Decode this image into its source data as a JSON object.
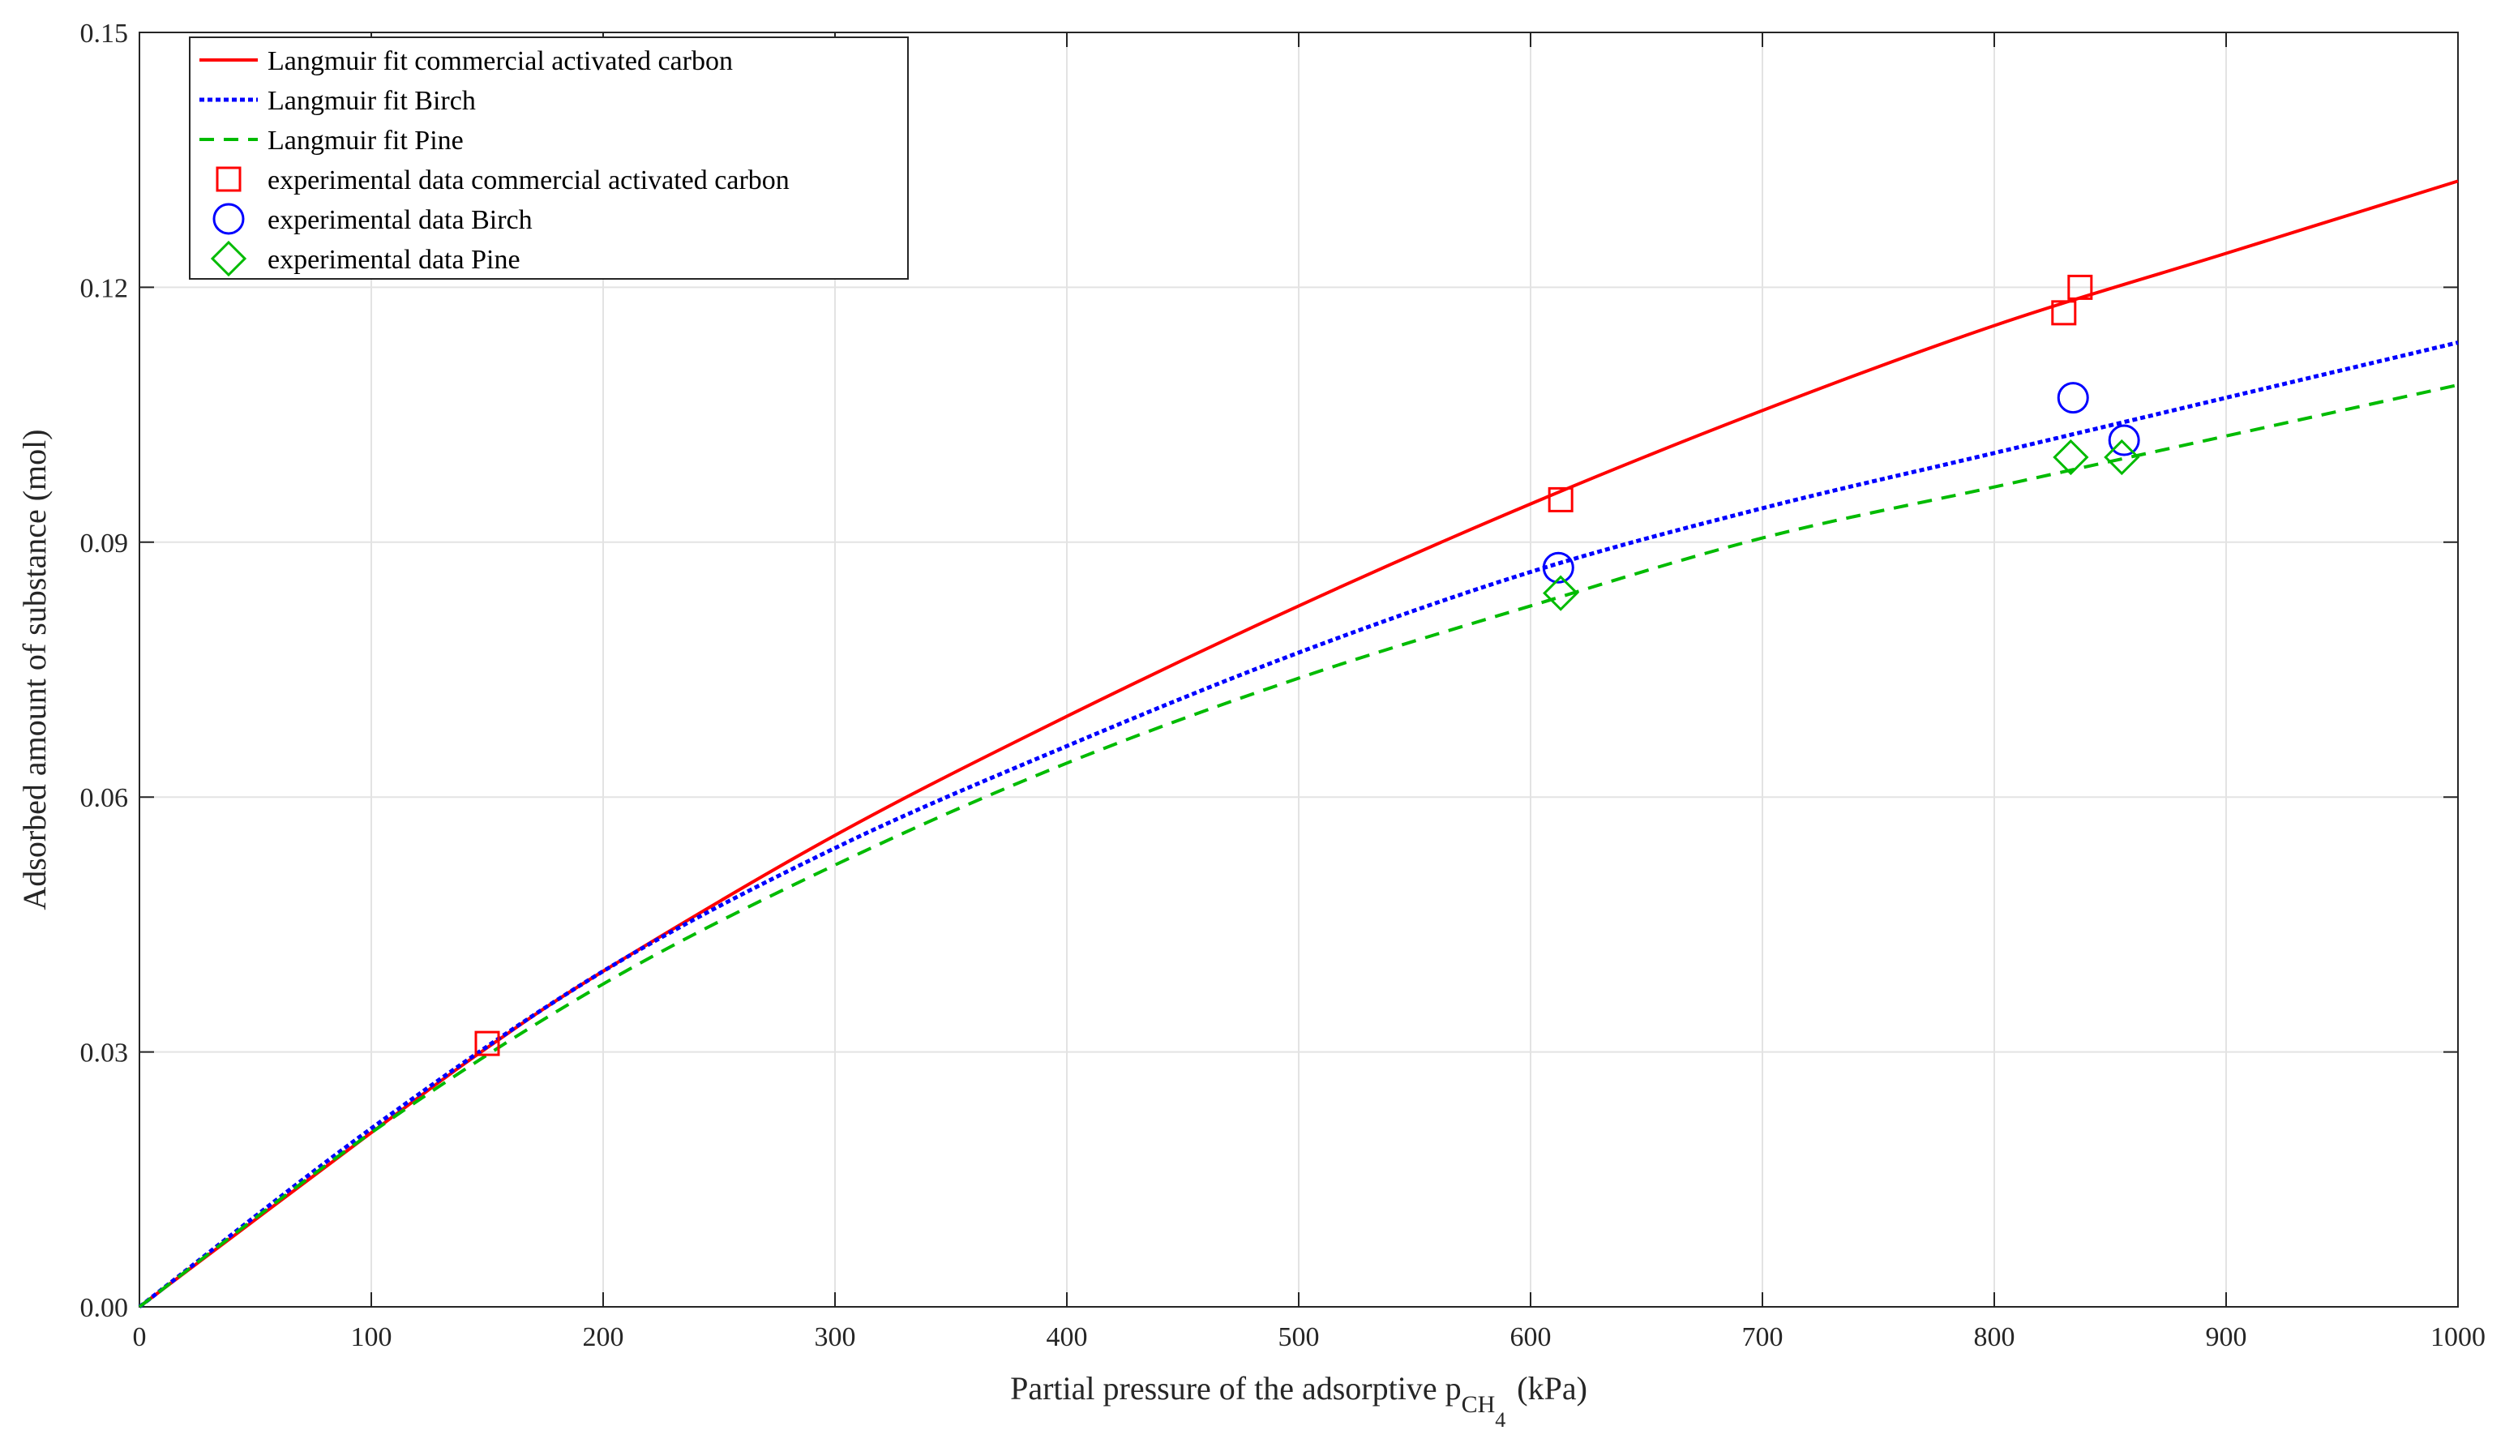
{
  "chart_data": {
    "type": "line",
    "title": "",
    "xlabel": {
      "prefix": "Partial pressure of the adsorptive p",
      "subscript": "CH",
      "subsubscript": "4",
      "suffix": "(kPa)"
    },
    "ylabel": "Adsorbed amount of substance (mol)",
    "xlim": [
      0,
      1000
    ],
    "ylim": [
      0,
      0.15
    ],
    "x_ticks": [
      0,
      100,
      200,
      300,
      400,
      500,
      600,
      700,
      800,
      900,
      1000
    ],
    "x_tick_labels": [
      "0",
      "100",
      "200",
      "300",
      "400",
      "500",
      "600",
      "700",
      "800",
      "900",
      "1000"
    ],
    "y_ticks": [
      0,
      0.03,
      0.06,
      0.09,
      0.12,
      0.15
    ],
    "y_tick_labels": [
      "0.00",
      "0.03",
      "0.06",
      "0.09",
      "0.12",
      "0.15"
    ],
    "grid": true,
    "legend_position": "top-left",
    "fit_curves": [
      {
        "name": "Langmuir fit commercial activated carbon",
        "color": "#ff0000",
        "style": "solid",
        "x": [
          0,
          100,
          150,
          200,
          300,
          400,
          500,
          600,
          700,
          800,
          900,
          1000
        ],
        "y": [
          0,
          0.0205,
          0.0305,
          0.0395,
          0.0555,
          0.0695,
          0.0825,
          0.0945,
          0.1055,
          0.1155,
          0.124,
          0.1325
        ]
      },
      {
        "name": "Langmuir fit Birch",
        "color": "#0000ff",
        "style": "dotted",
        "x": [
          0,
          100,
          200,
          300,
          400,
          500,
          600,
          700,
          800,
          900,
          1000
        ],
        "y": [
          0,
          0.021,
          0.0395,
          0.054,
          0.066,
          0.077,
          0.0865,
          0.094,
          0.1005,
          0.107,
          0.1135
        ]
      },
      {
        "name": "Langmuir fit Pine",
        "color": "#00bb00",
        "style": "dashed",
        "x": [
          0,
          100,
          200,
          300,
          400,
          500,
          600,
          700,
          800,
          900,
          1000
        ],
        "y": [
          0,
          0.0205,
          0.038,
          0.052,
          0.064,
          0.074,
          0.0825,
          0.0905,
          0.0965,
          0.1025,
          0.1085
        ]
      }
    ],
    "experimental_data": [
      {
        "name": "experimental data commercial activated carbon",
        "color": "#ff0000",
        "marker": "square",
        "x": [
          150,
          613,
          830,
          837
        ],
        "y": [
          0.031,
          0.095,
          0.117,
          0.12
        ]
      },
      {
        "name": "experimental data Birch",
        "color": "#0000ff",
        "marker": "circle",
        "x": [
          612,
          834,
          856
        ],
        "y": [
          0.087,
          0.107,
          0.102
        ]
      },
      {
        "name": "experimental data Pine",
        "color": "#00bb00",
        "marker": "diamond",
        "x": [
          613,
          833,
          855
        ],
        "y": [
          0.084,
          0.1,
          0.1
        ]
      }
    ]
  }
}
